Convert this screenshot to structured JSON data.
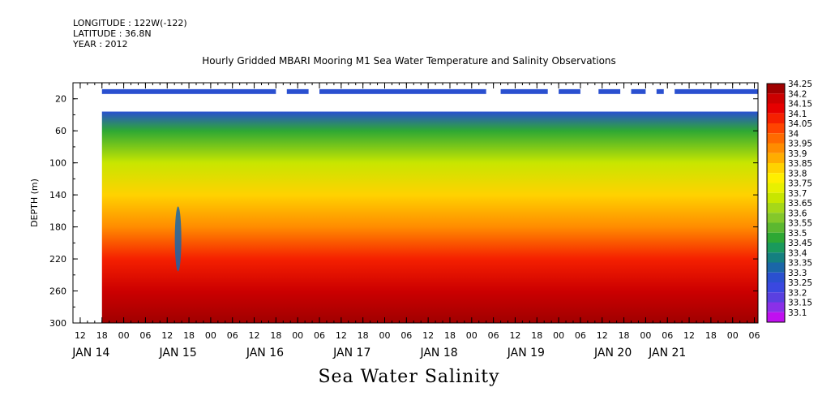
{
  "header": {
    "longitude": "LONGITUDE : 122W(-122)",
    "latitude": "LATITUDE : 36.8N",
    "year": "YEAR : 2012"
  },
  "chart_data": {
    "type": "heatmap",
    "title": "Hourly Gridded MBARI Mooring M1 Sea Water Temperature and Salinity Observations",
    "bottom_title": "Sea Water Salinity",
    "ylabel": "DEPTH (m)",
    "xlabel": "",
    "yaxis": {
      "ticks": [
        20,
        60,
        100,
        140,
        180,
        220,
        260
      ],
      "range": [
        300,
        0
      ],
      "inverted": true
    },
    "xaxis": {
      "range_hours_since_jan14": [
        -14,
        175
      ],
      "hour_ticks": [
        {
          "t": -12,
          "label": "12"
        },
        {
          "t": -6,
          "label": "18"
        },
        {
          "t": 0,
          "label": "00"
        },
        {
          "t": 6,
          "label": "06"
        },
        {
          "t": 12,
          "label": "12"
        },
        {
          "t": 18,
          "label": "18"
        },
        {
          "t": 24,
          "label": "00"
        },
        {
          "t": 30,
          "label": "06"
        },
        {
          "t": 36,
          "label": "12"
        },
        {
          "t": 42,
          "label": "18"
        },
        {
          "t": 48,
          "label": "00"
        },
        {
          "t": 54,
          "label": "06"
        },
        {
          "t": 60,
          "label": "12"
        },
        {
          "t": 66,
          "label": "18"
        },
        {
          "t": 72,
          "label": "00"
        },
        {
          "t": 78,
          "label": "06"
        },
        {
          "t": 84,
          "label": "12"
        },
        {
          "t": 90,
          "label": "18"
        },
        {
          "t": 96,
          "label": "00"
        },
        {
          "t": 102,
          "label": "06"
        },
        {
          "t": 108,
          "label": "12"
        },
        {
          "t": 114,
          "label": "18"
        },
        {
          "t": 120,
          "label": "00"
        },
        {
          "t": 126,
          "label": "06"
        },
        {
          "t": 132,
          "label": "12"
        },
        {
          "t": 138,
          "label": "18"
        },
        {
          "t": 144,
          "label": "00"
        },
        {
          "t": 150,
          "label": "06"
        },
        {
          "t": 156,
          "label": "12"
        },
        {
          "t": 162,
          "label": "18"
        },
        {
          "t": 168,
          "label": "00"
        },
        {
          "t": 174,
          "label": "06"
        }
      ],
      "date_labels": [
        {
          "t": -9,
          "label": "JAN 14"
        },
        {
          "t": 15,
          "label": "JAN 15"
        },
        {
          "t": 39,
          "label": "JAN 16"
        },
        {
          "t": 63,
          "label": "JAN 17"
        },
        {
          "t": 87,
          "label": "JAN 18"
        },
        {
          "t": 111,
          "label": "JAN 19"
        },
        {
          "t": 135,
          "label": "JAN 20"
        },
        {
          "t": 150,
          "label": "JAN 21"
        }
      ]
    },
    "colorbar": {
      "levels": [
        "34.25",
        "34.2",
        "34.15",
        "34.1",
        "34.05",
        "34",
        "33.95",
        "33.9",
        "33.85",
        "33.8",
        "33.75",
        "33.7",
        "33.65",
        "33.6",
        "33.55",
        "33.5",
        "33.45",
        "33.4",
        "33.35",
        "33.3",
        "33.25",
        "33.2",
        "33.15",
        "33.1"
      ],
      "colors": [
        "#a00000",
        "#cc0000",
        "#e60000",
        "#f52000",
        "#ff4400",
        "#ff6a00",
        "#ff8c00",
        "#ffad00",
        "#ffd200",
        "#ffee00",
        "#e8f000",
        "#c8e600",
        "#a6d818",
        "#84c82a",
        "#5cb830",
        "#2ea834",
        "#1a9a5c",
        "#148080",
        "#1a66a8",
        "#2a50d0",
        "#3a48e0",
        "#5a40e0",
        "#8a30e8",
        "#c010f0"
      ]
    },
    "surface_bins": [
      {
        "start": -6,
        "end": 42
      },
      {
        "start": 45,
        "end": 51
      },
      {
        "start": 54,
        "end": 100
      },
      {
        "start": 104,
        "end": 117
      },
      {
        "start": 120,
        "end": 126
      },
      {
        "start": 131,
        "end": 137
      },
      {
        "start": 140,
        "end": 144
      },
      {
        "start": 147,
        "end": 149
      },
      {
        "start": 152,
        "end": 175
      }
    ],
    "surface_depth_range": [
      8,
      14
    ],
    "surface_value": 33.3,
    "profile_top_depth": 36,
    "profile_bottom_depth": 300,
    "data_start_hour": -6,
    "data_end_hour": 175,
    "mean_profile": [
      {
        "depth": 36,
        "value": 33.3
      },
      {
        "depth": 60,
        "value": 33.5
      },
      {
        "depth": 100,
        "value": 33.7
      },
      {
        "depth": 140,
        "value": 33.83
      },
      {
        "depth": 180,
        "value": 33.95
      },
      {
        "depth": 220,
        "value": 34.08
      },
      {
        "depth": 260,
        "value": 34.22
      },
      {
        "depth": 300,
        "value": 34.25
      }
    ],
    "anomaly_events": [
      {
        "hour": 15,
        "depth": 195,
        "value": 33.35,
        "note": "low-salinity intrusion"
      }
    ]
  }
}
